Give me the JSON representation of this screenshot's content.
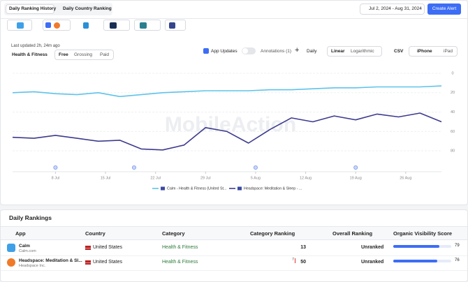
{
  "tabs": [
    "Daily Ranking History",
    "Daily Country Ranking"
  ],
  "date_range": "Jul 2, 2024 - Aug 31, 2024",
  "create_alert": "Create Alert",
  "last_updated": "Last updated 2h, 24m ago",
  "category_select": "Health & Fitness",
  "price_tabs": [
    "Free",
    "Grossing",
    "Paid"
  ],
  "toolbar": {
    "app_updates": "App Updates",
    "annotations": "Annotations (1)",
    "add": "+",
    "interval": "Daily",
    "scales": [
      "Linear",
      "Logarithmic"
    ],
    "csv": "CSV",
    "devices": [
      "iPhone",
      "iPad"
    ]
  },
  "chart": {
    "type": "line",
    "watermark": "MobileAction",
    "x": [
      "2 Jul",
      "5 Jul",
      "8 Jul",
      "11 Jul",
      "14 Jul",
      "17 Jul",
      "20 Jul",
      "23 Jul",
      "26 Jul",
      "29 Jul",
      "1 Aug",
      "4 Aug",
      "7 Aug",
      "10 Aug",
      "13 Aug",
      "16 Aug",
      "19 Aug",
      "22 Aug",
      "25 Aug",
      "28 Aug",
      "31 Aug"
    ],
    "xlim": [
      "2 Jul",
      "31 Aug"
    ],
    "xticks": [
      "8 Jul",
      "15 Jul",
      "22 Jul",
      "29 Jul",
      "5 Aug",
      "12 Aug",
      "19 Aug",
      "26 Aug"
    ],
    "ylim": [
      0,
      95
    ],
    "yticks": [
      0,
      20,
      40,
      60,
      80
    ],
    "y_reversed": true,
    "grid": true,
    "app_updates": [
      "8 Jul",
      "19 Jul",
      "5 Aug",
      "19 Aug"
    ],
    "series": [
      {
        "name": "Calm - Health & Fitness (United St...",
        "color": "#5ec3ea",
        "values": [
          20,
          19,
          21,
          22,
          20,
          24,
          22,
          20,
          19,
          18,
          18,
          18,
          17,
          17,
          16,
          15,
          15,
          14,
          14,
          14,
          13
        ]
      },
      {
        "name": "Headspace: Meditation & Sleep - ...",
        "color": "#3d3b8e",
        "values": [
          66,
          67,
          64,
          67,
          70,
          69,
          78,
          79,
          74,
          56,
          60,
          72,
          58,
          46,
          50,
          44,
          48,
          42,
          45,
          41,
          50
        ]
      }
    ]
  },
  "rankings": {
    "title": "Daily Rankings",
    "columns": [
      "App",
      "Country",
      "Category",
      "Category Ranking",
      "Overall Ranking",
      "Organic Visibility Score"
    ],
    "rows": [
      {
        "app": "Calm",
        "developer": "Calm.com",
        "country": "United States",
        "category": "Health & Fitness",
        "category_ranking": 13,
        "overall_ranking": "Unranked",
        "visibility_score": 79
      },
      {
        "app": "Headspace: Meditation & Sl...",
        "developer": "Headspace Inc.",
        "country": "United States",
        "category": "Health & Fitness",
        "category_change": 7,
        "category_ranking": 50,
        "overall_ranking": "Unranked",
        "visibility_score": 76
      }
    ]
  }
}
